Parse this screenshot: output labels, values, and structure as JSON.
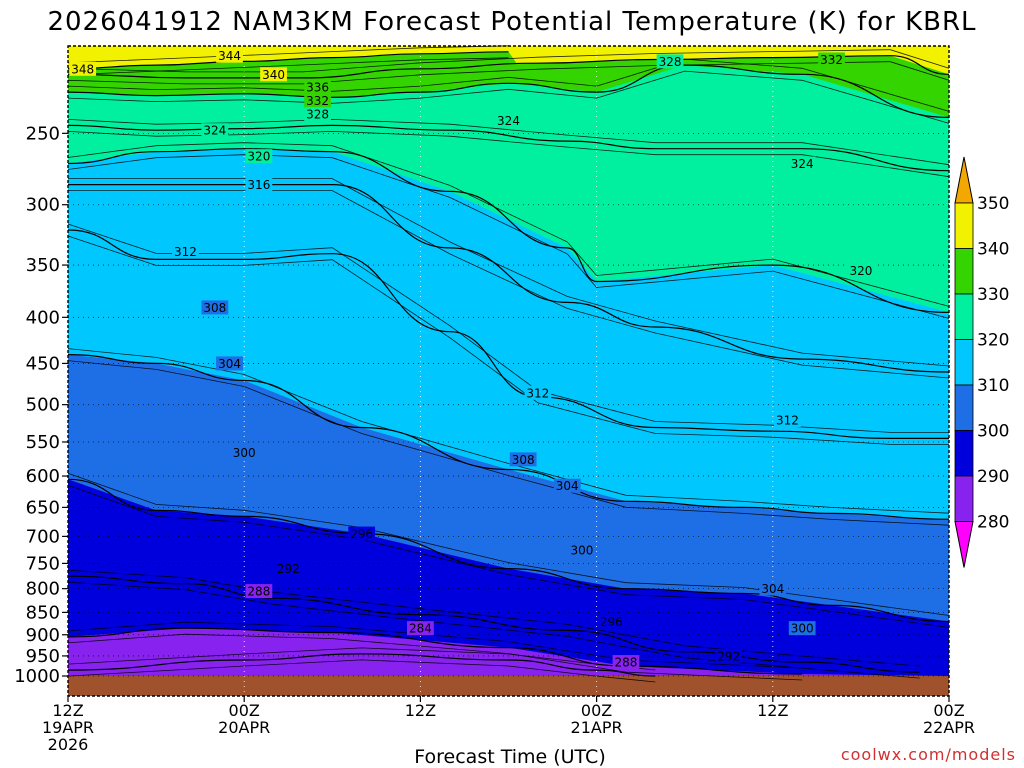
{
  "chart_data": {
    "type": "heatmap",
    "title": "2026041912 NAM3KM Forecast Potential Temperature (K) for KBRL",
    "xlabel": "Forecast Time (UTC)",
    "ylabel": "",
    "credit": "coolwx.com/models",
    "x_ticks": [
      {
        "hour": 0,
        "line1": "12Z",
        "line2": "19APR",
        "line3": "2026"
      },
      {
        "hour": 12,
        "line1": "00Z",
        "line2": "20APR",
        "line3": ""
      },
      {
        "hour": 24,
        "line1": "12Z",
        "line2": "",
        "line3": ""
      },
      {
        "hour": 36,
        "line1": "00Z",
        "line2": "21APR",
        "line3": ""
      },
      {
        "hour": 48,
        "line1": "12Z",
        "line2": "",
        "line3": ""
      },
      {
        "hour": 60,
        "line1": "00Z",
        "line2": "22APR",
        "line3": ""
      }
    ],
    "y_ticks": [
      250,
      300,
      350,
      400,
      450,
      500,
      550,
      600,
      650,
      700,
      750,
      800,
      850,
      900,
      950,
      1000
    ],
    "y_range_hpa": [
      200,
      1000
    ],
    "x_range_hours": [
      0,
      60
    ],
    "colorbar_levels": [
      280,
      290,
      300,
      310,
      320,
      330,
      340,
      350
    ],
    "color_bands": [
      {
        "low": 270,
        "high": 280,
        "color": "#ff00ff"
      },
      {
        "low": 280,
        "high": 290,
        "color": "#8822ee"
      },
      {
        "low": 290,
        "high": 300,
        "color": "#0000dd"
      },
      {
        "low": 300,
        "high": 310,
        "color": "#1e6fe6"
      },
      {
        "low": 310,
        "high": 320,
        "color": "#00c8ff"
      },
      {
        "low": 320,
        "high": 330,
        "color": "#00f0a0"
      },
      {
        "low": 330,
        "high": 340,
        "color": "#33d400"
      },
      {
        "low": 340,
        "high": 350,
        "color": "#f2f200"
      },
      {
        "low": 350,
        "high": 360,
        "color": "#f2a800"
      }
    ],
    "ground_color": "#a0522d",
    "contour_interval_k": 2,
    "series": [
      {
        "name": "284K contour",
        "hour": [
          0,
          12,
          20,
          30,
          36,
          40
        ],
        "pressure_hpa": [
          985,
          960,
          945,
          960,
          985,
          1000
        ]
      },
      {
        "name": "288K contour",
        "hour": [
          0,
          8,
          18,
          30,
          38,
          50
        ],
        "pressure_hpa": [
          905,
          885,
          895,
          930,
          975,
          995
        ]
      },
      {
        "name": "292K contour",
        "hour": [
          0,
          8,
          14,
          24,
          34,
          42,
          50,
          58
        ],
        "pressure_hpa": [
          775,
          790,
          820,
          855,
          890,
          940,
          965,
          990
        ]
      },
      {
        "name": "300K contour",
        "hour": [
          0,
          6,
          12,
          20,
          30,
          38,
          46,
          52,
          60
        ],
        "pressure_hpa": [
          605,
          655,
          665,
          695,
          760,
          800,
          810,
          835,
          870
        ]
      },
      {
        "name": "308K contour",
        "hour": [
          0,
          6,
          12,
          20,
          30,
          38,
          46,
          52,
          60
        ],
        "pressure_hpa": [
          440,
          450,
          470,
          530,
          590,
          640,
          650,
          660,
          670
        ]
      },
      {
        "name": "312K contour",
        "hour": [
          0,
          6,
          12,
          18,
          26,
          32,
          40,
          48,
          56,
          60
        ],
        "pressure_hpa": [
          320,
          345,
          345,
          340,
          415,
          490,
          530,
          535,
          545,
          545
        ]
      },
      {
        "name": "316K contour",
        "hour": [
          0,
          6,
          12,
          18,
          26,
          34,
          40,
          50,
          60
        ],
        "pressure_hpa": [
          285,
          285,
          285,
          285,
          335,
          385,
          410,
          445,
          460
        ]
      },
      {
        "name": "320K contour",
        "hour": [
          0,
          6,
          12,
          18,
          26,
          34,
          36,
          48,
          60
        ],
        "pressure_hpa": [
          270,
          262,
          260,
          262,
          290,
          335,
          365,
          350,
          395
        ]
      },
      {
        "name": "324K contour",
        "hour": [
          0,
          6,
          12,
          18,
          26,
          34,
          40,
          50,
          60
        ],
        "pressure_hpa": [
          245,
          248,
          247,
          245,
          248,
          255,
          260,
          260,
          275
        ]
      },
      {
        "name": "328K contour",
        "hour": [
          0,
          6,
          12,
          18,
          24,
          30,
          36,
          42,
          50,
          60
        ],
        "pressure_hpa": [
          225,
          227,
          226,
          228,
          225,
          220,
          225,
          210,
          215,
          240
        ]
      },
      {
        "name": "332K contour",
        "hour": [
          0,
          8,
          16,
          24,
          32,
          40,
          48,
          56,
          60
        ],
        "pressure_hpa": [
          215,
          217,
          217,
          212,
          209,
          207,
          206,
          205,
          215
        ]
      },
      {
        "name": "340K contour",
        "hour": [
          0,
          6,
          12,
          18,
          24,
          30
        ],
        "pressure_hpa": [
          212,
          210,
          208,
          206,
          204,
          203
        ]
      }
    ],
    "contour_labels": [
      {
        "text": "348",
        "hour": 1,
        "pressure_hpa": 212
      },
      {
        "text": "344",
        "hour": 11,
        "pressure_hpa": 205
      },
      {
        "text": "340",
        "hour": 14,
        "pressure_hpa": 215
      },
      {
        "text": "336",
        "hour": 17,
        "pressure_hpa": 222
      },
      {
        "text": "332",
        "hour": 17,
        "pressure_hpa": 230
      },
      {
        "text": "328",
        "hour": 17,
        "pressure_hpa": 238
      },
      {
        "text": "324",
        "hour": 10,
        "pressure_hpa": 248
      },
      {
        "text": "320",
        "hour": 13,
        "pressure_hpa": 265
      },
      {
        "text": "316",
        "hour": 13,
        "pressure_hpa": 285
      },
      {
        "text": "312",
        "hour": 8,
        "pressure_hpa": 338
      },
      {
        "text": "308",
        "hour": 10,
        "pressure_hpa": 390
      },
      {
        "text": "304",
        "hour": 11,
        "pressure_hpa": 450
      },
      {
        "text": "300",
        "hour": 12,
        "pressure_hpa": 565
      },
      {
        "text": "296",
        "hour": 20,
        "pressure_hpa": 695
      },
      {
        "text": "292",
        "hour": 15,
        "pressure_hpa": 760
      },
      {
        "text": "288",
        "hour": 13,
        "pressure_hpa": 805
      },
      {
        "text": "284",
        "hour": 24,
        "pressure_hpa": 885
      },
      {
        "text": "328",
        "hour": 41,
        "pressure_hpa": 208
      },
      {
        "text": "332",
        "hour": 52,
        "pressure_hpa": 207
      },
      {
        "text": "324",
        "hour": 30,
        "pressure_hpa": 242
      },
      {
        "text": "324",
        "hour": 50,
        "pressure_hpa": 270
      },
      {
        "text": "320",
        "hour": 54,
        "pressure_hpa": 355
      },
      {
        "text": "312",
        "hour": 32,
        "pressure_hpa": 485
      },
      {
        "text": "312",
        "hour": 49,
        "pressure_hpa": 520
      },
      {
        "text": "308",
        "hour": 31,
        "pressure_hpa": 575
      },
      {
        "text": "304",
        "hour": 34,
        "pressure_hpa": 615
      },
      {
        "text": "300",
        "hour": 35,
        "pressure_hpa": 725
      },
      {
        "text": "304",
        "hour": 48,
        "pressure_hpa": 800
      },
      {
        "text": "296",
        "hour": 37,
        "pressure_hpa": 870
      },
      {
        "text": "300",
        "hour": 50,
        "pressure_hpa": 885
      },
      {
        "text": "292",
        "hour": 45,
        "pressure_hpa": 950
      },
      {
        "text": "288",
        "hour": 38,
        "pressure_hpa": 965
      }
    ]
  }
}
